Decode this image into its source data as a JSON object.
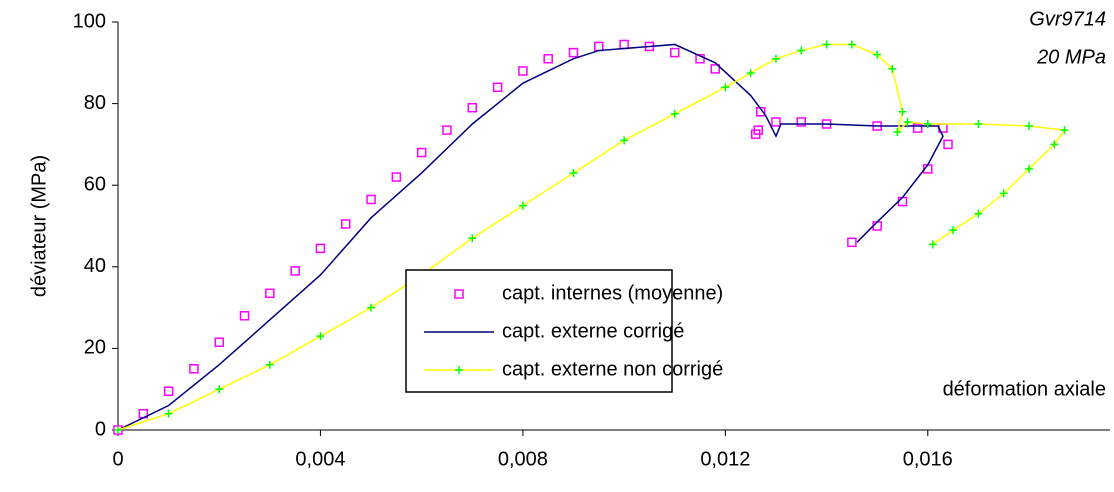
{
  "chart_data": {
    "type": "line",
    "annotations": [
      "Gvr9714",
      "20 MPa"
    ],
    "x_label": "déformation axiale",
    "y_label": "déviateur (MPa)",
    "xlim": [
      0,
      0.0196
    ],
    "ylim": [
      0,
      100
    ],
    "xticks": [
      0,
      {
        "value": 0.004,
        "label": "0,004"
      },
      {
        "value": 0.008,
        "label": "0,008"
      },
      {
        "value": 0.012,
        "label": "0,012"
      },
      {
        "value": 0.016,
        "label": "0,016"
      }
    ],
    "yticks": [
      0,
      20,
      40,
      60,
      80,
      100
    ],
    "grid": false,
    "series": [
      {
        "name": "capt. internes (moyenne)",
        "color": "#ff00ff",
        "marker": "square",
        "line": false,
        "x": [
          0,
          0.0005,
          0.001,
          0.0015,
          0.002,
          0.0025,
          0.003,
          0.0035,
          0.004,
          0.0045,
          0.005,
          0.0055,
          0.006,
          0.0065,
          0.007,
          0.0075,
          0.008,
          0.0085,
          0.009,
          0.0095,
          0.01,
          0.0105,
          0.011,
          0.0115,
          0.0118,
          0.0126,
          0.01265,
          0.0127,
          0.013,
          0.0135,
          0.014,
          0.015,
          0.0158,
          0.0163,
          0.0164,
          0.016,
          0.0155,
          0.015,
          0.0145
        ],
        "values": [
          0,
          4,
          9.5,
          15,
          21.5,
          28,
          33.5,
          39,
          44.5,
          50.5,
          56.5,
          62,
          68,
          73.5,
          79,
          84,
          88,
          91,
          92.5,
          94,
          94.5,
          94,
          92.5,
          91,
          88.5,
          72.5,
          73.5,
          78,
          75.5,
          75.5,
          75,
          74.5,
          74,
          74,
          70,
          64,
          56,
          50,
          46
        ]
      },
      {
        "name": "capt. externe corrigé",
        "color": "#000080",
        "marker": "none",
        "line": true,
        "x": [
          0,
          0.001,
          0.002,
          0.003,
          0.004,
          0.005,
          0.006,
          0.007,
          0.008,
          0.009,
          0.0095,
          0.0105,
          0.011,
          0.0118,
          0.0125,
          0.0128,
          0.013,
          0.0131,
          0.014,
          0.015,
          0.0162,
          0.0163,
          0.016,
          0.0155,
          0.015,
          0.0146
        ],
        "values": [
          0,
          6,
          16,
          27,
          38,
          52,
          63,
          75,
          85,
          91,
          93,
          94,
          94.5,
          90,
          82,
          77,
          72,
          75,
          75,
          74.5,
          74.5,
          72,
          65,
          57,
          51,
          46
        ]
      },
      {
        "name": "capt. externe non corrigé",
        "color": "#ffff00",
        "marker_color": "#00ff00",
        "marker": "plus",
        "line": true,
        "x": [
          0,
          0.001,
          0.002,
          0.003,
          0.004,
          0.005,
          0.006,
          0.007,
          0.008,
          0.009,
          0.01,
          0.011,
          0.012,
          0.0125,
          0.013,
          0.0135,
          0.014,
          0.0145,
          0.015,
          0.0153,
          0.0155,
          0.0154,
          0.0156,
          0.016,
          0.017,
          0.018,
          0.0187,
          0.0185,
          0.018,
          0.0175,
          0.017,
          0.0165,
          0.0161
        ],
        "values": [
          0,
          4,
          10,
          16,
          23,
          30,
          38,
          47,
          55,
          63,
          71,
          77.5,
          84,
          87.5,
          91,
          93,
          94.5,
          94.5,
          92,
          88.5,
          78,
          73,
          75.5,
          75,
          75,
          74.5,
          73.5,
          70,
          64,
          58,
          53,
          49,
          45.5
        ]
      }
    ]
  }
}
